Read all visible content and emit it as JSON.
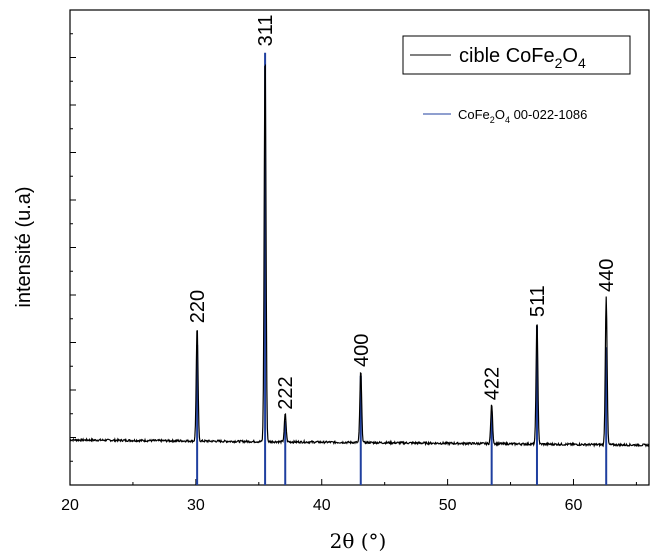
{
  "chart_data": {
    "type": "line",
    "xlabel_main": "2θ",
    "xlabel_unit": "(°)",
    "ylabel": "intensité (u.a)",
    "xlim": [
      20,
      66
    ],
    "ylim": [
      0,
      100
    ],
    "x_ticks": [
      20,
      30,
      40,
      50,
      60
    ],
    "x_tick_labels": [
      "20",
      "30",
      "40",
      "50",
      "60"
    ],
    "y_tick_labels_shown": false,
    "legend_position": "top-right",
    "legend_main": {
      "prefix": "cible CoFe",
      "sub1": "2",
      "mid": "O",
      "sub2": "4",
      "color": "#000000"
    },
    "legend_ref": {
      "prefix": "CoFe",
      "sub1": "2",
      "mid": "O",
      "sub2": "4",
      "suffix": " 00-022-1086",
      "color": "#1f3f9f"
    },
    "baseline": {
      "start": 9.5,
      "end": 8.4
    },
    "peaks": [
      {
        "x": 30.1,
        "label": "220",
        "height": 33.2,
        "ref_height": 29.5
      },
      {
        "x": 35.5,
        "label": "311",
        "height": 91.5,
        "ref_height": 91.0
      },
      {
        "x": 37.1,
        "label": "222",
        "height": 15.0,
        "ref_height": 13.5
      },
      {
        "x": 43.1,
        "label": "400",
        "height": 24.0,
        "ref_height": 23.0
      },
      {
        "x": 53.5,
        "label": "422",
        "height": 17.0,
        "ref_height": 15.5
      },
      {
        "x": 57.1,
        "label": "511",
        "height": 34.5,
        "ref_height": 33.5
      },
      {
        "x": 62.6,
        "label": "440",
        "height": 39.8,
        "ref_height": 29.0
      }
    ],
    "colors": {
      "sample": "#000000",
      "reference": "#1f3f9f"
    }
  }
}
